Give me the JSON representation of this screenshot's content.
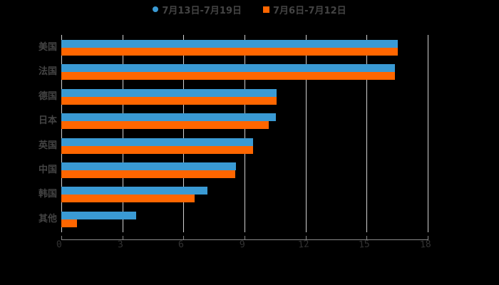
{
  "chart_data": {
    "type": "bar",
    "orientation": "horizontal",
    "title": "",
    "xlabel": "",
    "ylabel": "",
    "categories": [
      "美国",
      "法国",
      "德国",
      "日本",
      "英国",
      "中国",
      "韩国",
      "其他"
    ],
    "series": [
      {
        "name": "7月13日-7月19日",
        "color": "#3a9ad4",
        "values": [
          16.53,
          16.39,
          10.57,
          10.54,
          9.42,
          8.58,
          7.18,
          3.68
        ]
      },
      {
        "name": "7月6日-7月12日",
        "color": "#ff6600",
        "values": [
          16.53,
          16.39,
          10.57,
          10.19,
          9.42,
          8.54,
          6.55,
          0.77
        ]
      }
    ],
    "xlim": [
      0,
      18
    ],
    "xticks": [
      "0",
      "3",
      "6",
      "9",
      "12",
      "15",
      "18"
    ],
    "grid": true,
    "legend_position": "top"
  },
  "legend": {
    "items": [
      {
        "label": "7月13日-7月19日",
        "color": "#3a9ad4",
        "marker": "circle"
      },
      {
        "label": "7月6日-7月12日",
        "color": "#ff6600",
        "marker": "square"
      }
    ]
  }
}
